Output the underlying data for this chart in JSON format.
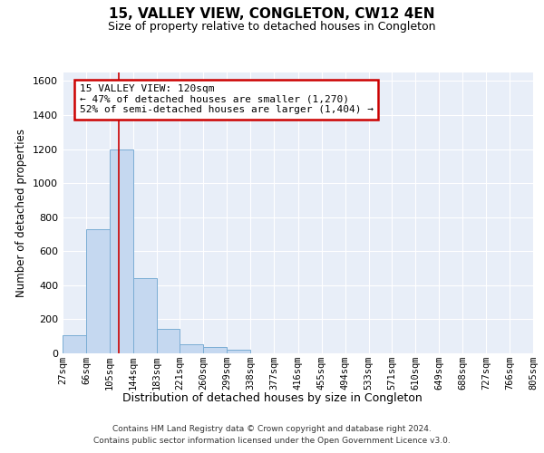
{
  "title": "15, VALLEY VIEW, CONGLETON, CW12 4EN",
  "subtitle": "Size of property relative to detached houses in Congleton",
  "xlabel": "Distribution of detached houses by size in Congleton",
  "ylabel": "Number of detached properties",
  "footer_line1": "Contains HM Land Registry data © Crown copyright and database right 2024.",
  "footer_line2": "Contains public sector information licensed under the Open Government Licence v3.0.",
  "bar_edges": [
    27,
    66,
    105,
    144,
    183,
    221,
    260,
    299,
    338,
    377,
    416,
    455,
    494,
    533,
    571,
    610,
    649,
    688,
    727,
    766,
    805
  ],
  "bar_heights": [
    105,
    730,
    1200,
    440,
    145,
    55,
    35,
    20,
    0,
    0,
    0,
    0,
    0,
    0,
    0,
    0,
    0,
    0,
    0,
    0
  ],
  "bar_color": "#c5d8f0",
  "bar_edge_color": "#7aadd4",
  "red_line_x": 120,
  "annotation_line1": "15 VALLEY VIEW: 120sqm",
  "annotation_line2": "← 47% of detached houses are smaller (1,270)",
  "annotation_line3": "52% of semi-detached houses are larger (1,404) →",
  "annotation_box_color": "#cc0000",
  "ylim": [
    0,
    1650
  ],
  "yticks": [
    0,
    200,
    400,
    600,
    800,
    1000,
    1200,
    1400,
    1600
  ],
  "bg_color": "#e8eef8",
  "grid_color": "#ffffff",
  "tick_labels": [
    "27sqm",
    "66sqm",
    "105sqm",
    "144sqm",
    "183sqm",
    "221sqm",
    "260sqm",
    "299sqm",
    "338sqm",
    "377sqm",
    "416sqm",
    "455sqm",
    "494sqm",
    "533sqm",
    "571sqm",
    "610sqm",
    "649sqm",
    "688sqm",
    "727sqm",
    "766sqm",
    "805sqm"
  ]
}
